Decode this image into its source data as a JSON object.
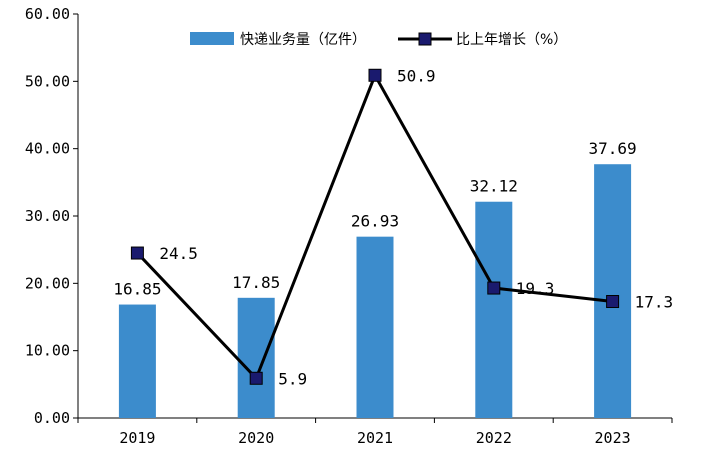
{
  "chart_data": {
    "type": "bar",
    "categories": [
      "2019",
      "2020",
      "2021",
      "2022",
      "2023"
    ],
    "series": [
      {
        "name": "快递业务量（亿件）",
        "type": "bar",
        "axis": "left",
        "values": [
          16.85,
          17.85,
          26.93,
          32.12,
          37.69
        ],
        "labels": [
          "16.85",
          "17.85",
          "26.93",
          "32.12",
          "37.69"
        ],
        "color": "#3c8ccc"
      },
      {
        "name": "比上年增长（%）",
        "type": "line",
        "axis": "left",
        "values": [
          24.5,
          5.9,
          50.9,
          19.3,
          17.3
        ],
        "labels": [
          "24.5",
          "5.9",
          "50.9",
          "19.3",
          "17.3"
        ],
        "color": "#000000",
        "marker_color": "#1a1a6e"
      }
    ],
    "y_ticks": [
      "0.00",
      "10.00",
      "20.00",
      "30.00",
      "40.00",
      "50.00",
      "60.00"
    ],
    "ylim": [
      0,
      60
    ],
    "legend": "top-right",
    "grid": false
  }
}
